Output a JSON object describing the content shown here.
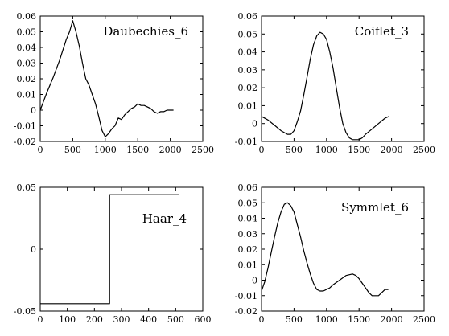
{
  "chart_data": [
    {
      "type": "line",
      "title": "Daubechies_6",
      "xlabel": "",
      "ylabel": "",
      "xlim": [
        0,
        2500
      ],
      "ylim": [
        -0.02,
        0.06
      ],
      "xticks": [
        "0",
        "500",
        "1000",
        "1500",
        "2000",
        "2500"
      ],
      "yticks": [
        "-0.02",
        "-0.01",
        "0",
        "0.01",
        "0.02",
        "0.03",
        "0.04",
        "0.05",
        "0.06"
      ],
      "grid": false,
      "series": [
        {
          "x": [
            0,
            100,
            200,
            300,
            400,
            450,
            500,
            550,
            600,
            650,
            700,
            750,
            800,
            850,
            900,
            950,
            1000,
            1050,
            1100,
            1150,
            1200,
            1250,
            1300,
            1350,
            1400,
            1450,
            1500,
            1550,
            1600,
            1650,
            1700,
            1750,
            1800,
            1850,
            1900,
            1950,
            2000,
            2050
          ],
          "y": [
            0.0,
            0.011,
            0.021,
            0.032,
            0.045,
            0.05,
            0.057,
            0.05,
            0.041,
            0.03,
            0.02,
            0.016,
            0.01,
            0.004,
            -0.004,
            -0.013,
            -0.017,
            -0.015,
            -0.012,
            -0.01,
            -0.005,
            -0.006,
            -0.003,
            -0.001,
            0.001,
            0.002,
            0.004,
            0.003,
            0.003,
            0.002,
            0.001,
            -0.001,
            -0.002,
            -0.001,
            -0.001,
            0.0,
            0.0,
            0.0
          ]
        }
      ]
    },
    {
      "type": "line",
      "title": "Coiflet_3",
      "xlabel": "",
      "ylabel": "",
      "xlim": [
        0,
        2500
      ],
      "ylim": [
        -0.01,
        0.06
      ],
      "xticks": [
        "0",
        "500",
        "1000",
        "1500",
        "2000",
        "2500"
      ],
      "yticks": [
        "-0.01",
        "0",
        "0.01",
        "0.02",
        "0.03",
        "0.04",
        "0.05",
        "0.06"
      ],
      "grid": false,
      "series": [
        {
          "x": [
            0,
            100,
            200,
            300,
            400,
            450,
            500,
            550,
            600,
            650,
            700,
            750,
            800,
            850,
            900,
            950,
            1000,
            1050,
            1100,
            1150,
            1200,
            1250,
            1300,
            1350,
            1400,
            1450,
            1500,
            1550,
            1600,
            1700,
            1800,
            1900,
            1960
          ],
          "y": [
            0.004,
            0.002,
            -0.001,
            -0.004,
            -0.006,
            -0.006,
            -0.004,
            0.001,
            0.007,
            0.016,
            0.026,
            0.036,
            0.044,
            0.049,
            0.051,
            0.05,
            0.047,
            0.04,
            0.031,
            0.02,
            0.009,
            0.0,
            -0.005,
            -0.008,
            -0.009,
            -0.009,
            -0.009,
            -0.008,
            -0.006,
            -0.003,
            0.0,
            0.003,
            0.004
          ]
        }
      ]
    },
    {
      "type": "line",
      "title": "Haar_4",
      "xlabel": "",
      "ylabel": "",
      "xlim": [
        0,
        600
      ],
      "ylim": [
        -0.05,
        0.05
      ],
      "xticks": [
        "0",
        "100",
        "200",
        "300",
        "400",
        "500",
        "600"
      ],
      "yticks": [
        "-0.05",
        "0",
        "0.05"
      ],
      "grid": false,
      "series": [
        {
          "x": [
            0,
            256,
            256,
            512
          ],
          "y": [
            -0.044,
            -0.044,
            0.044,
            0.044
          ]
        }
      ]
    },
    {
      "type": "line",
      "title": "Symmlet_6",
      "xlabel": "",
      "ylabel": "",
      "xlim": [
        0,
        2500
      ],
      "ylim": [
        -0.02,
        0.06
      ],
      "xticks": [
        "0",
        "500",
        "1000",
        "1500",
        "2000",
        "2500"
      ],
      "yticks": [
        "-0.02",
        "-0.01",
        "0",
        "0.01",
        "0.02",
        "0.03",
        "0.04",
        "0.05",
        "0.06"
      ],
      "grid": false,
      "series": [
        {
          "x": [
            0,
            50,
            100,
            150,
            200,
            250,
            300,
            350,
            400,
            450,
            500,
            550,
            600,
            650,
            700,
            750,
            800,
            850,
            900,
            950,
            1000,
            1050,
            1100,
            1200,
            1300,
            1400,
            1450,
            1500,
            1550,
            1600,
            1650,
            1700,
            1750,
            1800,
            1850,
            1900,
            1950
          ],
          "y": [
            -0.007,
            -0.001,
            0.008,
            0.018,
            0.028,
            0.037,
            0.044,
            0.049,
            0.05,
            0.048,
            0.044,
            0.036,
            0.028,
            0.019,
            0.011,
            0.004,
            -0.002,
            -0.006,
            -0.007,
            -0.007,
            -0.006,
            -0.005,
            -0.003,
            0.0,
            0.003,
            0.004,
            0.003,
            0.001,
            -0.002,
            -0.005,
            -0.008,
            -0.01,
            -0.01,
            -0.01,
            -0.008,
            -0.006,
            -0.006
          ]
        }
      ]
    }
  ]
}
